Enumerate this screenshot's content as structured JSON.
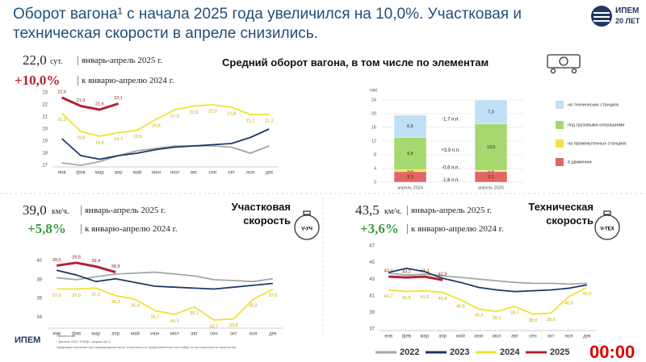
{
  "header": {
    "title": "Оборот вагона¹ с начала 2025 года увеличился на 10,0%. Участковая и техническая скорости в апреле снизились.",
    "logo": "ИПЕМ",
    "logo_sub": "20 ЛЕТ"
  },
  "blocks": [
    {
      "value": "22,0",
      "unit": "сут.",
      "period": "январь-апрель 2025 г.",
      "change": "+10,0%",
      "base": "к январю-апрелю 2024 г."
    },
    {
      "value": "39,0",
      "unit": "км/ч.",
      "period": "январь-апрель 2025 г.",
      "change": "+5,8%",
      "base": "к январю-апрелю 2024 г.",
      "icon": "V-УЧ"
    },
    {
      "value": "43,5",
      "unit": "км/ч.",
      "period": "январь-апрель 2025 г.",
      "change": "+3,6%",
      "base": "к январю-апрелю 2024 г.",
      "icon": "V-ТЕХ"
    }
  ],
  "legend": [
    {
      "name": "2022",
      "color": "#a6a6a6"
    },
    {
      "name": "2023",
      "color": "#1f3864"
    },
    {
      "name": "2024",
      "color": "#f2e130"
    },
    {
      "name": "2025",
      "color": "#b22234"
    }
  ],
  "chart_data": [
    {
      "type": "line",
      "categories": [
        "янв",
        "фев",
        "мар",
        "апр",
        "май",
        "июн",
        "июл",
        "авг",
        "сен",
        "окт",
        "ноя",
        "дек"
      ],
      "ylim": [
        17,
        23
      ],
      "yticks": [
        17,
        18,
        19,
        20,
        21,
        22,
        23
      ],
      "series": [
        {
          "color": "#a6a6a6",
          "values": [
            17.2,
            17.0,
            17.3,
            17.8,
            18.2,
            18.4,
            18.6,
            18.6,
            18.6,
            18.5,
            18.0,
            18.6
          ]
        },
        {
          "color": "#1f3864",
          "values": [
            19.2,
            17.8,
            17.5,
            17.8,
            18.0,
            18.3,
            18.5,
            18.6,
            18.7,
            18.8,
            19.3,
            20.0
          ]
        },
        {
          "color": "#f2e130",
          "values": [
            21.3,
            19.8,
            19.4,
            19.7,
            19.9,
            20.8,
            21.6,
            21.9,
            22.0,
            21.8,
            21.2,
            21.2
          ],
          "value_labels": [
            "21,3",
            "19,8",
            "19,4",
            "19,7",
            "19,9",
            "20,8",
            "21,6",
            "21,9",
            "22,0",
            "21,8",
            "21,2",
            "21,2"
          ]
        },
        {
          "color": "#b22234",
          "values": [
            22.6,
            21.9,
            21.6,
            22.1,
            null,
            null,
            null,
            null,
            null,
            null,
            null,
            null
          ],
          "value_labels": [
            "22,6",
            "21,9",
            "21,6",
            "22,1",
            null,
            null,
            null,
            null,
            null,
            null,
            null,
            null
          ]
        }
      ]
    },
    {
      "type": "stacked_bar",
      "title": "Средний оборот вагона, в том числе по элементам",
      "y_label": "час",
      "categories": [
        "апрель 2024",
        "апрель 2025"
      ],
      "ylim": [
        0,
        24
      ],
      "yticks": [
        0,
        4,
        8,
        12,
        16,
        20,
        24
      ],
      "series": [
        {
          "name": "в движении",
          "color": "#e06666",
          "values": [
            3.1,
            3.1
          ],
          "value_labels": [
            "3,1",
            "3,1"
          ],
          "change": "-1,6 п.п."
        },
        {
          "name": "на промежуточных станциях",
          "color": "#f4e04a",
          "values": [
            0.5,
            0.4
          ],
          "value_labels": [
            "0,5",
            "0,4"
          ],
          "change": "-0,6 п.п."
        },
        {
          "name": "под грузовыми операциями",
          "color": "#a6d86f",
          "values": [
            9.5,
            13.5
          ],
          "value_labels": [
            "9,5",
            "13,5"
          ],
          "change": "+3,9 п.п."
        },
        {
          "name": "на технических станциях",
          "color": "#bfe0f5",
          "values": [
            6.5,
            7.0
          ],
          "value_labels": [
            "6,5",
            "7,0"
          ],
          "change": "-1,7 п.п."
        }
      ]
    },
    {
      "type": "line",
      "title": "Участковая скорость",
      "categories": [
        "янв",
        "фев",
        "мар",
        "апр",
        "май",
        "июн",
        "июл",
        "авг",
        "сен",
        "окт",
        "ноя",
        "дек"
      ],
      "ylim": [
        33,
        41
      ],
      "yticks": [
        34,
        36,
        38,
        40
      ],
      "series": [
        {
          "color": "#a6a6a6",
          "values": [
            38.2,
            38.0,
            38.3,
            38.6,
            38.7,
            38.8,
            38.6,
            38.4,
            38.0,
            37.9,
            37.8,
            38.1
          ]
        },
        {
          "color": "#1f3864",
          "values": [
            39.0,
            38.5,
            37.8,
            38.1,
            37.7,
            37.3,
            37.2,
            37.1,
            37.0,
            37.2,
            37.4,
            37.6
          ]
        },
        {
          "color": "#f2e130",
          "values": [
            37.0,
            37.0,
            37.1,
            36.3,
            35.9,
            34.7,
            34.3,
            35.1,
            33.7,
            33.8,
            35.9,
            37.0
          ],
          "value_labels": [
            "37,0",
            "37,0",
            "37,1",
            "36,3",
            "35,9",
            "34,7",
            "34,3",
            "35,1",
            "33,7",
            "33,8",
            "35,9",
            "37,0"
          ]
        },
        {
          "color": "#b22234",
          "values": [
            39.5,
            39.8,
            39.4,
            38.8,
            null,
            null,
            null,
            null,
            null,
            null,
            null,
            null
          ],
          "value_labels": [
            "39,5",
            "39,8",
            "39,4",
            "38,8",
            null,
            null,
            null,
            null,
            null,
            null,
            null,
            null
          ]
        }
      ]
    },
    {
      "type": "line",
      "title": "Техническая скорость",
      "categories": [
        "янв",
        "фев",
        "мар",
        "апр",
        "май",
        "июн",
        "июл",
        "авг",
        "сен",
        "окт",
        "ноя",
        "дек"
      ],
      "ylim": [
        37,
        47
      ],
      "yticks": [
        37,
        39,
        41,
        43,
        45,
        47
      ],
      "series": [
        {
          "color": "#a6a6a6",
          "values": [
            43.7,
            43.5,
            43.6,
            43.4,
            43.2,
            43.0,
            42.8,
            42.6,
            42.5,
            42.5,
            42.4,
            42.5
          ]
        },
        {
          "color": "#1f3864",
          "values": [
            43.8,
            44.3,
            43.9,
            43.1,
            42.6,
            42.0,
            41.7,
            41.5,
            41.6,
            41.7,
            41.9,
            42.3
          ]
        },
        {
          "color": "#f2e130",
          "values": [
            41.7,
            41.5,
            41.6,
            41.4,
            40.5,
            39.4,
            39.1,
            39.7,
            38.8,
            38.9,
            40.9,
            42.0
          ],
          "value_labels": [
            "41,7",
            "41,5",
            "41,6",
            "41,4",
            "40,5",
            "39,4",
            "39,1",
            "39,7",
            "38,8",
            "38,9",
            "40,9",
            "42,0"
          ]
        },
        {
          "color": "#b22234",
          "values": [
            43.3,
            43.2,
            43.3,
            42.9,
            null,
            null,
            null,
            null,
            null,
            null,
            null,
            null
          ],
          "value_labels": [
            "43,3",
            "43,2",
            "43,3",
            "42,9",
            null,
            null,
            null,
            null,
            null,
            null,
            null,
            null
          ]
        }
      ]
    }
  ],
  "footer": {
    "logo": "ИПЕМ",
    "notes": [
      "Примечания",
      "¹ Данные ОАО «РЖД», форма ЦО-3",
      "Цифровые значения при суммировании могут отличаться от представленных на слайде из-за погрешности округления"
    ],
    "timer": "00:00"
  }
}
